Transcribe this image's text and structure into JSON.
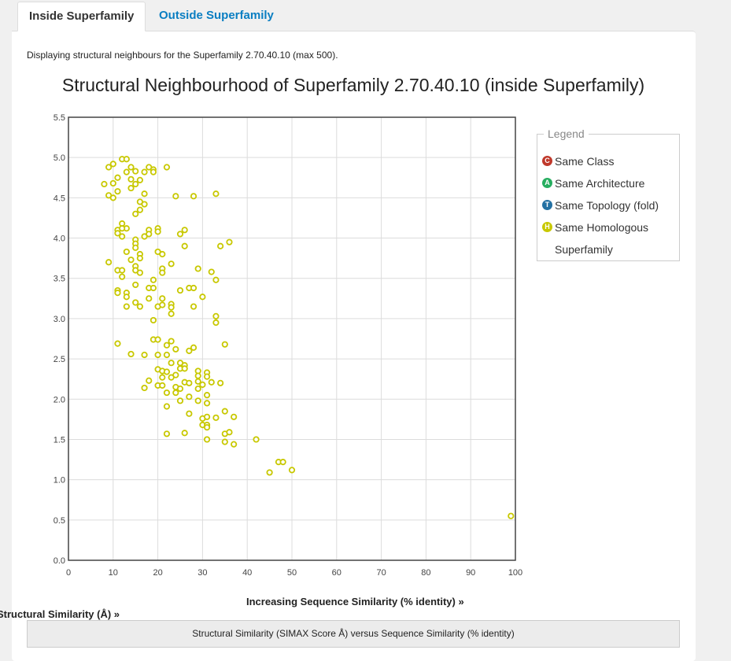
{
  "tabs": [
    {
      "label": "Inside Superfamily",
      "active": true
    },
    {
      "label": "Outside Superfamily",
      "active": false
    }
  ],
  "description": "Displaying structural neighbours for the Superfamily 2.70.40.10 (max 500).",
  "legend": {
    "caption": "Legend",
    "items": [
      {
        "label": "Same Class",
        "letter": "C",
        "color": "#c0392b"
      },
      {
        "label": "Same Architecture",
        "letter": "A",
        "color": "#27ae60"
      },
      {
        "label": "Same Topology (fold)",
        "letter": "T",
        "color": "#2471a3"
      },
      {
        "label": "Same Homologous Superfamily",
        "letter": "H",
        "color": "#c8c800"
      }
    ]
  },
  "caption": "Structural Similarity (SIMAX Score Å) versus Sequence Similarity (% identity)",
  "chart_data": {
    "type": "scatter",
    "title": "Structural Neighbourhood of Superfamily 2.70.40.10 (inside Superfamily)",
    "xlabel": "Increasing Sequence Similarity (% identity) »",
    "ylabel": "Structural Similarity (Å) »",
    "xlim": [
      0,
      100
    ],
    "ylim": [
      0.0,
      5.5
    ],
    "x_ticks": [
      "0",
      "10",
      "20",
      "30",
      "40",
      "50",
      "60",
      "70",
      "80",
      "90",
      "100"
    ],
    "y_ticks": [
      "0.0",
      "0.5",
      "1.0",
      "1.5",
      "2.0",
      "2.5",
      "3.0",
      "3.5",
      "4.0",
      "4.5",
      "5.0",
      "5.5"
    ],
    "grid": true,
    "legend_position": "right",
    "point_color": "#c8c800",
    "series": [
      {
        "points": [
          [
            12,
            4.98
          ],
          [
            13,
            4.98
          ],
          [
            10,
            4.92
          ],
          [
            9,
            4.88
          ],
          [
            14,
            4.88
          ],
          [
            17,
            4.82
          ],
          [
            13,
            4.82
          ],
          [
            15,
            4.83
          ],
          [
            18,
            4.88
          ],
          [
            19,
            4.85
          ],
          [
            22,
            4.88
          ],
          [
            19,
            4.82
          ],
          [
            11,
            4.75
          ],
          [
            14,
            4.73
          ],
          [
            16,
            4.72
          ],
          [
            10,
            4.68
          ],
          [
            8,
            4.67
          ],
          [
            15,
            4.67
          ],
          [
            14,
            4.62
          ],
          [
            11,
            4.58
          ],
          [
            17,
            4.55
          ],
          [
            9,
            4.53
          ],
          [
            10,
            4.5
          ],
          [
            24,
            4.52
          ],
          [
            28,
            4.52
          ],
          [
            33,
            4.55
          ],
          [
            16,
            4.45
          ],
          [
            17,
            4.42
          ],
          [
            16,
            4.35
          ],
          [
            15,
            4.3
          ],
          [
            12,
            4.18
          ],
          [
            13,
            4.12
          ],
          [
            11,
            4.1
          ],
          [
            12,
            4.12
          ],
          [
            11,
            4.06
          ],
          [
            12,
            4.02
          ],
          [
            18,
            4.1
          ],
          [
            18,
            4.05
          ],
          [
            20,
            4.12
          ],
          [
            20,
            4.08
          ],
          [
            17,
            4.02
          ],
          [
            26,
            4.1
          ],
          [
            25,
            4.05
          ],
          [
            15,
            3.98
          ],
          [
            15,
            3.93
          ],
          [
            15,
            3.88
          ],
          [
            36,
            3.95
          ],
          [
            34,
            3.9
          ],
          [
            26,
            3.9
          ],
          [
            13,
            3.83
          ],
          [
            16,
            3.8
          ],
          [
            20,
            3.83
          ],
          [
            21,
            3.8
          ],
          [
            16,
            3.75
          ],
          [
            14,
            3.73
          ],
          [
            9,
            3.7
          ],
          [
            23,
            3.68
          ],
          [
            15,
            3.65
          ],
          [
            21,
            3.62
          ],
          [
            29,
            3.62
          ],
          [
            11,
            3.6
          ],
          [
            12,
            3.6
          ],
          [
            15,
            3.6
          ],
          [
            16,
            3.57
          ],
          [
            21,
            3.57
          ],
          [
            32,
            3.58
          ],
          [
            12,
            3.52
          ],
          [
            19,
            3.48
          ],
          [
            33,
            3.48
          ],
          [
            15,
            3.42
          ],
          [
            18,
            3.38
          ],
          [
            19,
            3.38
          ],
          [
            27,
            3.38
          ],
          [
            28,
            3.38
          ],
          [
            25,
            3.35
          ],
          [
            11,
            3.35
          ],
          [
            11,
            3.32
          ],
          [
            13,
            3.32
          ],
          [
            13,
            3.27
          ],
          [
            18,
            3.25
          ],
          [
            21,
            3.25
          ],
          [
            30,
            3.27
          ],
          [
            15,
            3.2
          ],
          [
            16,
            3.15
          ],
          [
            13,
            3.15
          ],
          [
            20,
            3.15
          ],
          [
            21,
            3.17
          ],
          [
            23,
            3.18
          ],
          [
            23,
            3.14
          ],
          [
            28,
            3.15
          ],
          [
            23,
            3.06
          ],
          [
            33,
            3.03
          ],
          [
            33,
            2.95
          ],
          [
            19,
            2.98
          ],
          [
            11,
            2.69
          ],
          [
            19,
            2.74
          ],
          [
            20,
            2.74
          ],
          [
            22,
            2.67
          ],
          [
            23,
            2.72
          ],
          [
            35,
            2.68
          ],
          [
            24,
            2.62
          ],
          [
            28,
            2.64
          ],
          [
            27,
            2.6
          ],
          [
            14,
            2.56
          ],
          [
            17,
            2.55
          ],
          [
            20,
            2.55
          ],
          [
            22,
            2.55
          ],
          [
            23,
            2.45
          ],
          [
            25,
            2.45
          ],
          [
            26,
            2.42
          ],
          [
            25,
            2.38
          ],
          [
            20,
            2.37
          ],
          [
            21,
            2.35
          ],
          [
            22,
            2.34
          ],
          [
            26,
            2.38
          ],
          [
            29,
            2.35
          ],
          [
            31,
            2.33
          ],
          [
            24,
            2.3
          ],
          [
            29,
            2.29
          ],
          [
            31,
            2.28
          ],
          [
            21,
            2.27
          ],
          [
            23,
            2.27
          ],
          [
            29,
            2.22
          ],
          [
            26,
            2.21
          ],
          [
            27,
            2.2
          ],
          [
            32,
            2.21
          ],
          [
            34,
            2.2
          ],
          [
            18,
            2.23
          ],
          [
            20,
            2.17
          ],
          [
            21,
            2.17
          ],
          [
            17,
            2.14
          ],
          [
            24,
            2.15
          ],
          [
            25,
            2.13
          ],
          [
            29,
            2.13
          ],
          [
            30,
            2.18
          ],
          [
            22,
            2.08
          ],
          [
            24,
            2.08
          ],
          [
            27,
            2.03
          ],
          [
            31,
            2.05
          ],
          [
            29,
            1.98
          ],
          [
            25,
            1.98
          ],
          [
            31,
            1.95
          ],
          [
            22,
            1.91
          ],
          [
            27,
            1.82
          ],
          [
            35,
            1.85
          ],
          [
            30,
            1.76
          ],
          [
            31,
            1.78
          ],
          [
            33,
            1.77
          ],
          [
            37,
            1.78
          ],
          [
            30,
            1.68
          ],
          [
            31,
            1.68
          ],
          [
            31,
            1.65
          ],
          [
            22,
            1.57
          ],
          [
            26,
            1.58
          ],
          [
            35,
            1.57
          ],
          [
            36,
            1.59
          ],
          [
            31,
            1.5
          ],
          [
            35,
            1.47
          ],
          [
            37,
            1.44
          ],
          [
            42,
            1.5
          ],
          [
            47,
            1.22
          ],
          [
            48,
            1.22
          ],
          [
            45,
            1.09
          ],
          [
            50,
            1.12
          ],
          [
            99,
            0.55
          ]
        ]
      }
    ]
  }
}
